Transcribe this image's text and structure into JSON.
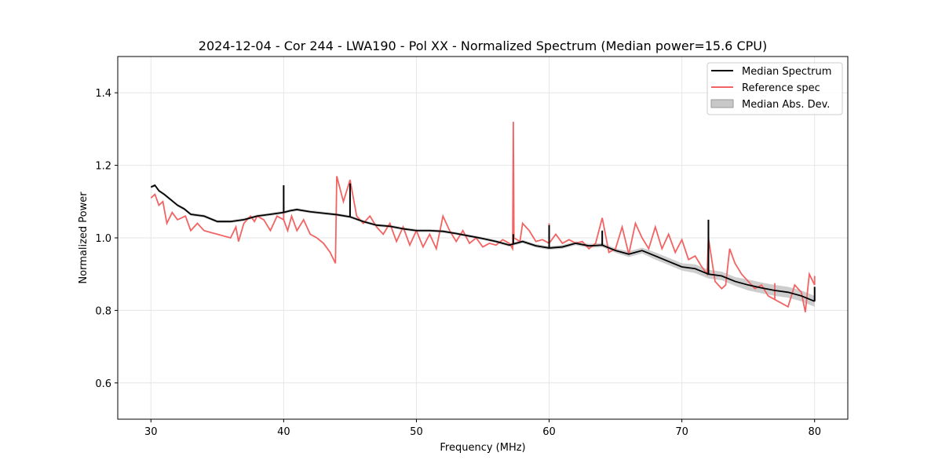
{
  "chart_data": {
    "type": "line",
    "title": "2024-12-04 - Cor 244 - LWA190 - Pol XX - Normalized Spectrum (Median power=15.6 CPU)",
    "xlabel": "Frequency (MHz)",
    "ylabel": "Normalized Power",
    "xlim": [
      27.5,
      82.5
    ],
    "ylim": [
      0.5,
      1.5
    ],
    "xticks": [
      30,
      40,
      50,
      60,
      70,
      80
    ],
    "yticks": [
      0.6,
      0.8,
      1.0,
      1.2,
      1.4
    ],
    "xtick_labels": [
      "30",
      "40",
      "50",
      "60",
      "70",
      "80"
    ],
    "ytick_labels": [
      "0.6",
      "0.8",
      "1.0",
      "1.2",
      "1.4"
    ],
    "grid": true,
    "legend_position": "top-right",
    "legend": [
      "Median Spectrum",
      "Reference spec",
      "Median Abs. Dev."
    ],
    "colors": {
      "median": "#000000",
      "reference": "#f26464",
      "mad": "#c8c8c8",
      "grid": "#e6e6e6"
    },
    "series": [
      {
        "name": "Median Spectrum",
        "x": [
          30.0,
          30.3,
          30.6,
          31.0,
          31.5,
          32.0,
          32.5,
          33.0,
          34.0,
          35.0,
          36.0,
          37.0,
          38.0,
          39.0,
          40.0,
          40.5,
          41.0,
          42.0,
          43.0,
          44.0,
          45.0,
          46.0,
          47.0,
          48.0,
          49.0,
          50.0,
          51.0,
          52.0,
          53.0,
          54.0,
          55.0,
          56.0,
          57.0,
          58.0,
          59.0,
          60.0,
          61.0,
          62.0,
          63.0,
          64.0,
          65.0,
          66.0,
          67.0,
          68.0,
          69.0,
          70.0,
          71.0,
          72.0,
          73.0,
          74.0,
          75.0,
          76.0,
          77.0,
          78.0,
          79.0,
          80.0
        ],
        "values": [
          1.14,
          1.145,
          1.13,
          1.12,
          1.105,
          1.09,
          1.08,
          1.065,
          1.06,
          1.045,
          1.045,
          1.05,
          1.06,
          1.065,
          1.07,
          1.075,
          1.078,
          1.072,
          1.068,
          1.064,
          1.058,
          1.045,
          1.035,
          1.032,
          1.025,
          1.02,
          1.02,
          1.018,
          1.012,
          1.005,
          0.998,
          0.99,
          0.98,
          0.99,
          0.978,
          0.972,
          0.975,
          0.985,
          0.978,
          0.98,
          0.965,
          0.955,
          0.965,
          0.95,
          0.935,
          0.92,
          0.915,
          0.9,
          0.895,
          0.88,
          0.87,
          0.862,
          0.855,
          0.85,
          0.84,
          0.825
        ],
        "spikes": [
          {
            "x": 40.0,
            "value": 1.145
          },
          {
            "x": 45.0,
            "value": 1.15
          },
          {
            "x": 57.3,
            "value": 1.01
          },
          {
            "x": 60.0,
            "value": 1.035
          },
          {
            "x": 64.0,
            "value": 1.02
          },
          {
            "x": 72.0,
            "value": 1.05
          },
          {
            "x": 80.0,
            "value": 0.865
          }
        ]
      },
      {
        "name": "Reference spec",
        "x": [
          30.0,
          30.3,
          30.6,
          30.9,
          31.2,
          31.6,
          32.0,
          32.6,
          33.0,
          33.5,
          34.0,
          34.5,
          35.0,
          35.5,
          36.0,
          36.4,
          36.6,
          37.0,
          37.5,
          37.8,
          38.0,
          38.5,
          39.0,
          39.5,
          40.0,
          40.3,
          40.6,
          41.0,
          41.5,
          42.0,
          42.5,
          43.0,
          43.5,
          43.9,
          44.0,
          44.5,
          45.0,
          45.5,
          46.0,
          46.5,
          47.0,
          47.5,
          48.0,
          48.5,
          49.0,
          49.5,
          50.0,
          50.5,
          51.0,
          51.5,
          52.0,
          52.5,
          53.0,
          53.5,
          54.0,
          54.5,
          55.0,
          55.5,
          56.0,
          56.5,
          57.0,
          57.25,
          57.3,
          57.35,
          57.8,
          58.0,
          58.5,
          59.0,
          59.5,
          60.0,
          60.5,
          61.0,
          61.5,
          62.0,
          62.5,
          63.0,
          63.5,
          64.0,
          64.5,
          65.0,
          65.5,
          66.0,
          66.5,
          67.0,
          67.5,
          68.0,
          68.5,
          69.0,
          69.5,
          70.0,
          70.5,
          71.0,
          71.5,
          71.9,
          72.0,
          72.5,
          73.0,
          73.3,
          73.6,
          74.0,
          74.5,
          75.0,
          75.5,
          76.0,
          76.5,
          77.0,
          77.5,
          78.0,
          78.5,
          79.0,
          79.3,
          79.6,
          80.0
        ],
        "values": [
          1.11,
          1.12,
          1.09,
          1.1,
          1.04,
          1.07,
          1.05,
          1.06,
          1.02,
          1.04,
          1.02,
          1.015,
          1.01,
          1.005,
          1.0,
          1.03,
          0.99,
          1.04,
          1.06,
          1.045,
          1.06,
          1.05,
          1.02,
          1.06,
          1.05,
          1.02,
          1.06,
          1.02,
          1.05,
          1.01,
          1.0,
          0.985,
          0.96,
          0.93,
          1.17,
          1.1,
          1.16,
          1.06,
          1.04,
          1.06,
          1.03,
          1.01,
          1.04,
          0.99,
          1.03,
          0.98,
          1.02,
          0.975,
          1.01,
          0.97,
          1.06,
          1.02,
          0.99,
          1.02,
          0.985,
          1.0,
          0.975,
          0.985,
          0.98,
          0.995,
          0.985,
          0.97,
          1.32,
          1.0,
          0.99,
          1.04,
          1.02,
          0.99,
          0.995,
          0.985,
          1.01,
          0.985,
          0.995,
          0.985,
          0.99,
          0.97,
          0.985,
          1.055,
          0.96,
          0.97,
          1.03,
          0.955,
          1.04,
          1.0,
          0.97,
          1.03,
          0.97,
          1.01,
          0.96,
          0.995,
          0.94,
          0.95,
          0.92,
          0.9,
          1.0,
          0.88,
          0.86,
          0.87,
          0.97,
          0.93,
          0.9,
          0.88,
          0.86,
          0.87,
          0.84,
          0.83,
          0.82,
          0.81,
          0.87,
          0.85,
          0.795,
          0.9,
          0.87
        ],
        "spikes": [
          {
            "x": 40.0,
            "value": 1.09
          },
          {
            "x": 45.0,
            "value": 1.09
          },
          {
            "x": 60.0,
            "value": 1.04
          },
          {
            "x": 72.0,
            "value": 1.0
          },
          {
            "x": 77.0,
            "value": 0.875
          },
          {
            "x": 80.0,
            "value": 0.895
          }
        ]
      },
      {
        "name": "Median Abs. Dev.",
        "x": [
          30.0,
          35.0,
          40.0,
          45.0,
          50.0,
          55.0,
          60.0,
          65.0,
          66.0,
          67.0,
          68.0,
          69.0,
          70.0,
          71.0,
          72.0,
          73.0,
          74.0,
          75.0,
          76.0,
          77.0,
          78.0,
          79.0,
          80.0
        ],
        "values": [
          0.004,
          0.004,
          0.004,
          0.004,
          0.004,
          0.004,
          0.005,
          0.006,
          0.008,
          0.008,
          0.01,
          0.01,
          0.01,
          0.012,
          0.012,
          0.012,
          0.012,
          0.015,
          0.015,
          0.015,
          0.015,
          0.015,
          0.015
        ]
      }
    ]
  }
}
